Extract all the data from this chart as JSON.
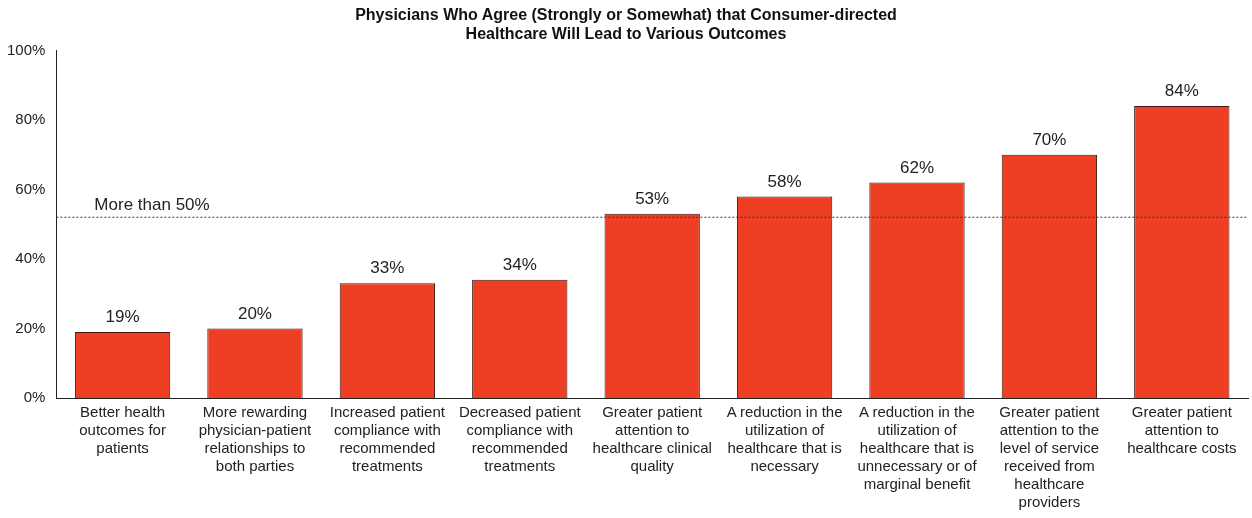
{
  "chart_data": {
    "type": "bar",
    "title": "Physicians Who Agree (Strongly or Somewhat) that Consumer-directed Healthcare Will Lead to Various Outcomes",
    "categories": [
      "Better health outcomes for patients",
      "More rewarding physician-patient relationships to both parties",
      "Increased patient compliance with recommended treatments",
      "Decreased patient compliance with recommended treatments",
      "Greater patient attention to healthcare clinical quality",
      "A reduction in the utilization of healthcare that is necessary",
      "A reduction in the utilization of healthcare that is unnecessary or of marginal benefit",
      "Greater patient attention to the level of service received from healthcare providers",
      "Greater patient attention to healthcare costs"
    ],
    "values": [
      19,
      20,
      33,
      34,
      53,
      58,
      62,
      70,
      84
    ],
    "value_labels": [
      "19%",
      "20%",
      "33%",
      "34%",
      "53%",
      "58%",
      "62%",
      "70%",
      "84%"
    ],
    "color": "#ee3e24",
    "ylim": [
      0,
      100
    ],
    "yticks": [
      {
        "value": 0,
        "label": "0%"
      },
      {
        "value": 20,
        "label": "20%"
      },
      {
        "value": 40,
        "label": "40%"
      },
      {
        "value": 60,
        "label": "60%"
      },
      {
        "value": 80,
        "label": "80%"
      },
      {
        "value": 100,
        "label": "100%"
      }
    ],
    "ref_lines": [
      {
        "axis": "y",
        "value": 52,
        "label": "More than 50%",
        "color": "#333333",
        "line_style": "dotted"
      }
    ],
    "grid": false,
    "legend": false
  }
}
